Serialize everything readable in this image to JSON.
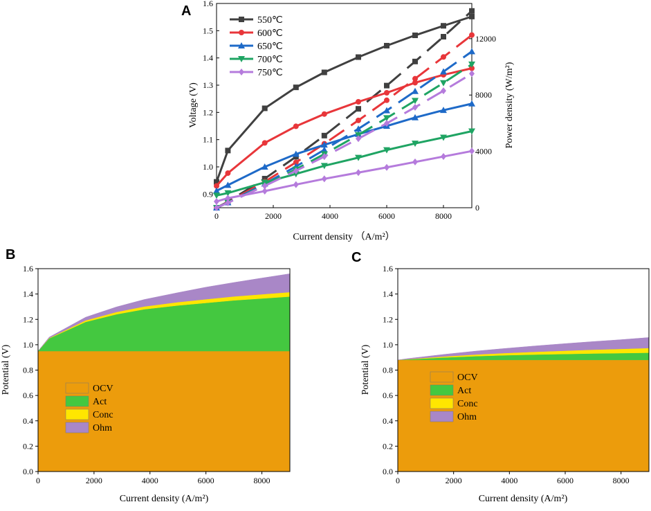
{
  "chart_data": [
    {
      "id": "A",
      "type": "line",
      "panel_label": "A",
      "xlabel": "Current density （A/m²）",
      "ylabel_left": "Voltage (V)",
      "ylabel_right": "Power density (W/m²)",
      "xlim": [
        0,
        9000
      ],
      "ylim_left": [
        0.85,
        1.6
      ],
      "ylim_right": [
        0,
        14500
      ],
      "x_ticks": [
        0,
        2000,
        4000,
        6000,
        8000
      ],
      "y_ticks_left": [
        "0.9",
        "1.0",
        "1.1",
        "1.2",
        "1.3",
        "1.4",
        "1.5",
        "1.6"
      ],
      "y_ticks_right": [
        0,
        4000,
        8000,
        12000
      ],
      "legend_position": "top-left",
      "x": [
        0,
        400,
        1700,
        2800,
        3800,
        5000,
        6000,
        7000,
        8000,
        9000
      ],
      "series": [
        {
          "name": "550℃",
          "color": "#404040",
          "marker": "square",
          "voltage": [
            0.945,
            1.06,
            1.215,
            1.292,
            1.347,
            1.403,
            1.445,
            1.483,
            1.518,
            1.552
          ],
          "power": [
            0,
            420,
            2065,
            3620,
            5120,
            7020,
            8670,
            10380,
            12140,
            13970
          ]
        },
        {
          "name": "600℃",
          "color": "#e8363a",
          "marker": "circle",
          "voltage": [
            0.93,
            0.977,
            1.088,
            1.149,
            1.194,
            1.239,
            1.272,
            1.309,
            1.338,
            1.362
          ],
          "power": [
            0,
            390,
            1850,
            3220,
            4540,
            6200,
            7630,
            9160,
            10700,
            12260
          ]
        },
        {
          "name": "650℃",
          "color": "#1e6ac8",
          "marker": "triangle-up",
          "voltage": [
            0.912,
            0.933,
            1.0,
            1.047,
            1.081,
            1.12,
            1.15,
            1.181,
            1.208,
            1.232
          ],
          "power": [
            0,
            370,
            1700,
            2930,
            4110,
            5600,
            6900,
            8270,
            9660,
            11090
          ]
        },
        {
          "name": "700℃",
          "color": "#1fa463",
          "marker": "triangle-down",
          "voltage": [
            0.895,
            0.904,
            0.943,
            0.974,
            1.004,
            1.034,
            1.062,
            1.086,
            1.108,
            1.131
          ],
          "power": [
            0,
            360,
            1600,
            2730,
            3810,
            5170,
            6370,
            7600,
            8860,
            10180
          ]
        },
        {
          "name": "750℃",
          "color": "#b57bdc",
          "marker": "diamond",
          "voltage": [
            0.873,
            0.885,
            0.911,
            0.935,
            0.956,
            0.979,
            0.998,
            1.018,
            1.038,
            1.058
          ],
          "power": [
            0,
            350,
            1550,
            2620,
            3630,
            4900,
            5990,
            7130,
            8300,
            9520
          ]
        }
      ]
    },
    {
      "id": "B",
      "type": "area",
      "panel_label": "B",
      "xlabel": "Current density (A/m²)",
      "ylabel": "Potential (V)",
      "xlim": [
        0,
        9000
      ],
      "ylim": [
        0,
        1.6
      ],
      "x_ticks": [
        0,
        2000,
        4000,
        6000,
        8000
      ],
      "y_ticks": [
        "0.0",
        "0.2",
        "0.4",
        "0.6",
        "0.8",
        "1.0",
        "1.2",
        "1.4",
        "1.6"
      ],
      "legend_position": "bottom-left",
      "x": [
        0,
        400,
        1700,
        2800,
        3800,
        5000,
        6000,
        7000,
        8000,
        9000
      ],
      "series": [
        {
          "name": "OCV",
          "color": "#ec9c0c",
          "values": [
            0.95,
            0.95,
            0.95,
            0.95,
            0.95,
            0.95,
            0.95,
            0.95,
            0.95,
            0.95
          ]
        },
        {
          "name": "Act",
          "color": "#44c840",
          "values": [
            0.0,
            0.1,
            0.23,
            0.29,
            0.33,
            0.36,
            0.38,
            0.4,
            0.415,
            0.43
          ]
        },
        {
          "name": "Conc",
          "color": "#ffe600",
          "values": [
            0.0,
            0.003,
            0.012,
            0.018,
            0.022,
            0.026,
            0.029,
            0.031,
            0.033,
            0.035
          ]
        },
        {
          "name": "Ohm",
          "color": "#a987c7",
          "values": [
            0.0,
            0.007,
            0.025,
            0.04,
            0.055,
            0.075,
            0.095,
            0.11,
            0.128,
            0.145
          ]
        }
      ]
    },
    {
      "id": "C",
      "type": "area",
      "panel_label": "C",
      "xlabel": "Current density (A/m²)",
      "ylabel": "Potential (V)",
      "xlim": [
        0,
        9000
      ],
      "ylim": [
        0,
        1.6
      ],
      "x_ticks": [
        0,
        2000,
        4000,
        6000,
        8000
      ],
      "y_ticks": [
        "0.0",
        "0.2",
        "0.4",
        "0.6",
        "0.8",
        "1.0",
        "1.2",
        "1.4",
        "1.6"
      ],
      "legend_position": "center-left",
      "x": [
        0,
        400,
        1700,
        2800,
        3800,
        5000,
        6000,
        7000,
        8000,
        9000
      ],
      "series": [
        {
          "name": "OCV",
          "color": "#ec9c0c",
          "values": [
            0.88,
            0.88,
            0.88,
            0.88,
            0.88,
            0.88,
            0.88,
            0.88,
            0.88,
            0.88
          ]
        },
        {
          "name": "Act",
          "color": "#44c840",
          "values": [
            0.0,
            0.005,
            0.02,
            0.03,
            0.037,
            0.043,
            0.047,
            0.051,
            0.054,
            0.057
          ]
        },
        {
          "name": "Conc",
          "color": "#ffe600",
          "values": [
            0.0,
            0.002,
            0.008,
            0.013,
            0.017,
            0.022,
            0.026,
            0.03,
            0.033,
            0.037
          ]
        },
        {
          "name": "Ohm",
          "color": "#a987c7",
          "values": [
            0.0,
            0.005,
            0.017,
            0.027,
            0.036,
            0.047,
            0.056,
            0.064,
            0.073,
            0.083
          ]
        }
      ]
    }
  ]
}
